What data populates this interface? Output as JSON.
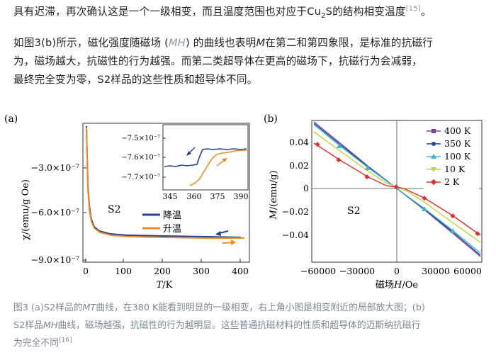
{
  "paragraph1": {
    "text_a": "具有迟滞，再次确认这是一个一级相变，而且温度范围也对应于Cu",
    "sub": "2",
    "text_b": "S的结构相变温度",
    "ref": "[15]",
    "text_c": "。"
  },
  "paragraph2": {
    "line1_a": "如图3(b)所示，磁化强度随磁场 (",
    "line1_mh": "MH",
    "line1_b": ") 的曲线也表明",
    "line1_m": "M",
    "line1_c": "在第二和第四象限，是标准的抗磁行",
    "line2": "为，磁场越大，抗磁性的行为越强。而第二类超导体在更高的磁场下，抗磁行为会减弱，",
    "line3": "最终完全变为零，S2样品的这些性质和超导体不同。"
  },
  "figure_a": {
    "panel_label": "(a)",
    "sample_label": "S2",
    "ylabel": "χ/(emu/g Oe)",
    "xlabel_italic": "T",
    "xlabel_unit": "/K",
    "yticks": [
      "−3.0×10⁻⁷",
      "−6.0×10⁻⁷",
      "−9.0×10⁻⁷"
    ],
    "xticks": [
      "0",
      "100",
      "200",
      "300",
      "400"
    ],
    "legend": [
      {
        "label": "降温",
        "color": "#2a3f8f"
      },
      {
        "label": "升温",
        "color": "#f28c28"
      }
    ],
    "inset": {
      "yticks": [
        "−7.5×10⁻⁷",
        "−7.6×10⁻⁷",
        "−7.7×10⁻⁷"
      ],
      "xticks": [
        "345",
        "360",
        "375",
        "390"
      ]
    }
  },
  "figure_b": {
    "panel_label": "(b)",
    "sample_label": "S2",
    "ylabel_italic": "M",
    "ylabel_unit": "/(emu/g)",
    "xlabel_a": "磁场",
    "xlabel_italic": "H",
    "xlabel_unit": "/Oe",
    "yticks": [
      "0.04",
      "0.02",
      "0",
      "−0.02",
      "−0.04"
    ],
    "xticks": [
      "−60000",
      "−30000",
      "0",
      "30000",
      "60000"
    ],
    "legend": [
      {
        "label": "400 K",
        "color": "#7b3f9e"
      },
      {
        "label": "350 K",
        "color": "#1f4e9c"
      },
      {
        "label": "100 K",
        "color": "#3fb6c8"
      },
      {
        "label": "10 K",
        "color": "#c8d23c"
      },
      {
        "label": "2 K",
        "color": "#e03030"
      }
    ]
  },
  "caption": {
    "a": "图3 (a)S2样品的",
    "mt": "MT",
    "b": "曲线，在380 K能看到明显的一级相变，右上角小图是相变附近的局部放大图；(b)",
    "c": "S2样品",
    "mh": "MH",
    "d": "曲线，磁场越强，抗磁性的行为越明显。这些普通抗磁材料的性质和超导体的迈斯纳抗磁行",
    "e": "为完全不同",
    "ref": "[16]"
  }
}
